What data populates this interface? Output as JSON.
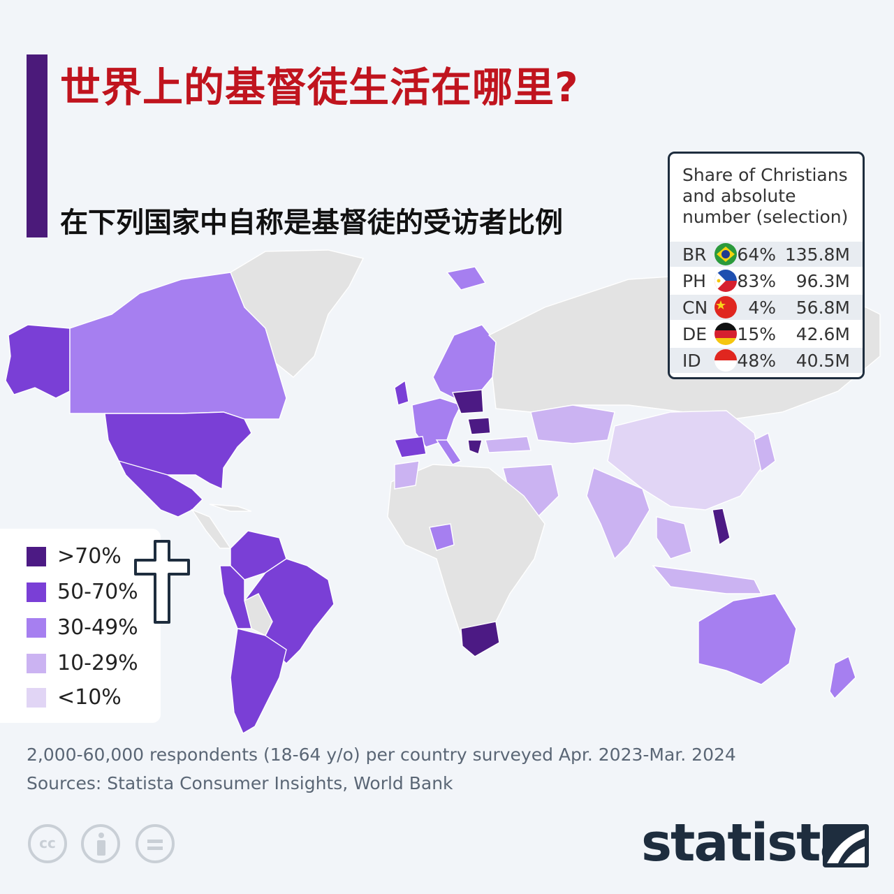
{
  "header": {
    "title": "世界上的基督徒生活在哪里?",
    "subtitle": "在下列国家中自称是基督徒的受访者比例"
  },
  "table": {
    "heading": "Share of Christians and absolute number (selection)",
    "rows": [
      {
        "code": "BR",
        "flag": "brazil-flag",
        "share": "64%",
        "number": "135.8M"
      },
      {
        "code": "PH",
        "flag": "philippines-flag",
        "share": "83%",
        "number": "96.3M"
      },
      {
        "code": "CN",
        "flag": "china-flag",
        "share": "4%",
        "number": "56.8M"
      },
      {
        "code": "DE",
        "flag": "germany-flag",
        "share": "15%",
        "number": "42.6M"
      },
      {
        "code": "ID",
        "flag": "indonesia-flag",
        "share": "48%",
        "number": "40.5M"
      }
    ]
  },
  "legend": {
    "items": [
      {
        "label": ">70%",
        "color": "#4c1a84"
      },
      {
        "label": "50-70%",
        "color": "#7a3fd6"
      },
      {
        "label": "30-49%",
        "color": "#a67ff0"
      },
      {
        "label": "10-29%",
        "color": "#cbb3f2"
      },
      {
        "label": "<10%",
        "color": "#e1d5f5"
      }
    ]
  },
  "notes": {
    "survey": "2,000-60,000 respondents (18-64 y/o) per country surveyed Apr. 2023-Mar. 2024",
    "sources": "Sources: Statista Consumer Insights, World Bank"
  },
  "footer": {
    "license_icons": [
      "cc-icon",
      "attribution-icon",
      "no-derivatives-icon"
    ],
    "brand": "statista"
  },
  "colors": {
    "accent": "#4b1a7a",
    "title": "#c0141e",
    "no_data": "#e3e3e3"
  }
}
